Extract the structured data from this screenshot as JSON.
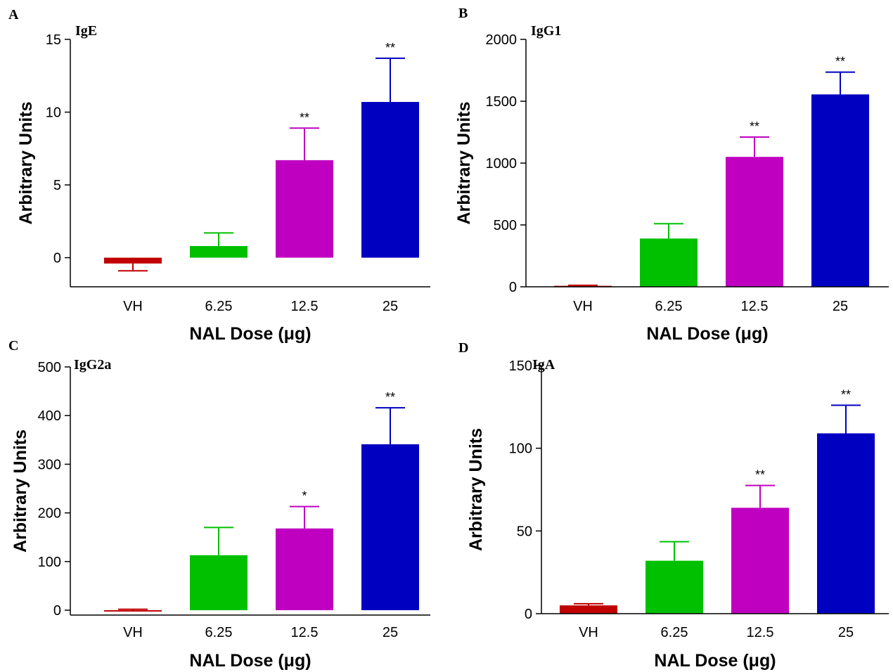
{
  "colors": [
    "#c00000",
    "#00c000",
    "#c000c0",
    "#0000c0"
  ],
  "chart_data": [
    {
      "type": "bar",
      "panel": "A",
      "title": "IgE",
      "xlabel": "NAL Dose (μg)",
      "ylabel": "Arbitrary Units",
      "categories": [
        "VH",
        "6.25",
        "12.5",
        "25"
      ],
      "values": [
        -0.4,
        0.8,
        6.7,
        10.7
      ],
      "errors": [
        0.5,
        0.9,
        2.2,
        3.0
      ],
      "significance": [
        "",
        "",
        "**",
        "**"
      ],
      "ylim": [
        -2,
        15
      ],
      "yticks": [
        0,
        5,
        10,
        15
      ]
    },
    {
      "type": "bar",
      "panel": "B",
      "title": "IgG1",
      "xlabel": "NAL Dose (μg)",
      "ylabel": "Arbitrary Units",
      "categories": [
        "VH",
        "6.25",
        "12.5",
        "25"
      ],
      "values": [
        8,
        390,
        1050,
        1555
      ],
      "errors": [
        4,
        120,
        160,
        180
      ],
      "significance": [
        "",
        "",
        "**",
        "**"
      ],
      "ylim": [
        0,
        2000
      ],
      "yticks": [
        0,
        500,
        1000,
        1500,
        2000
      ]
    },
    {
      "type": "bar",
      "panel": "C",
      "title": "IgG2a",
      "xlabel": "NAL Dose (μg)",
      "ylabel": "Arbitrary Units",
      "categories": [
        "VH",
        "6.25",
        "12.5",
        "25"
      ],
      "values": [
        0,
        113,
        168,
        341
      ],
      "errors": [
        2,
        57,
        45,
        75
      ],
      "significance": [
        "",
        "",
        "*",
        "**"
      ],
      "ylim": [
        -10,
        500
      ],
      "yticks": [
        0,
        100,
        200,
        300,
        400,
        500
      ]
    },
    {
      "type": "bar",
      "panel": "D",
      "title": "IgA",
      "xlabel": "NAL Dose (μg)",
      "ylabel": "Arbitrary Units",
      "categories": [
        "VH",
        "6.25",
        "12.5",
        "25"
      ],
      "values": [
        5,
        32,
        64,
        109
      ],
      "errors": [
        1,
        11.5,
        13.5,
        17
      ],
      "significance": [
        "",
        "",
        "**",
        "**"
      ],
      "ylim": [
        0,
        150
      ],
      "yticks": [
        0,
        50,
        100,
        150
      ]
    }
  ]
}
